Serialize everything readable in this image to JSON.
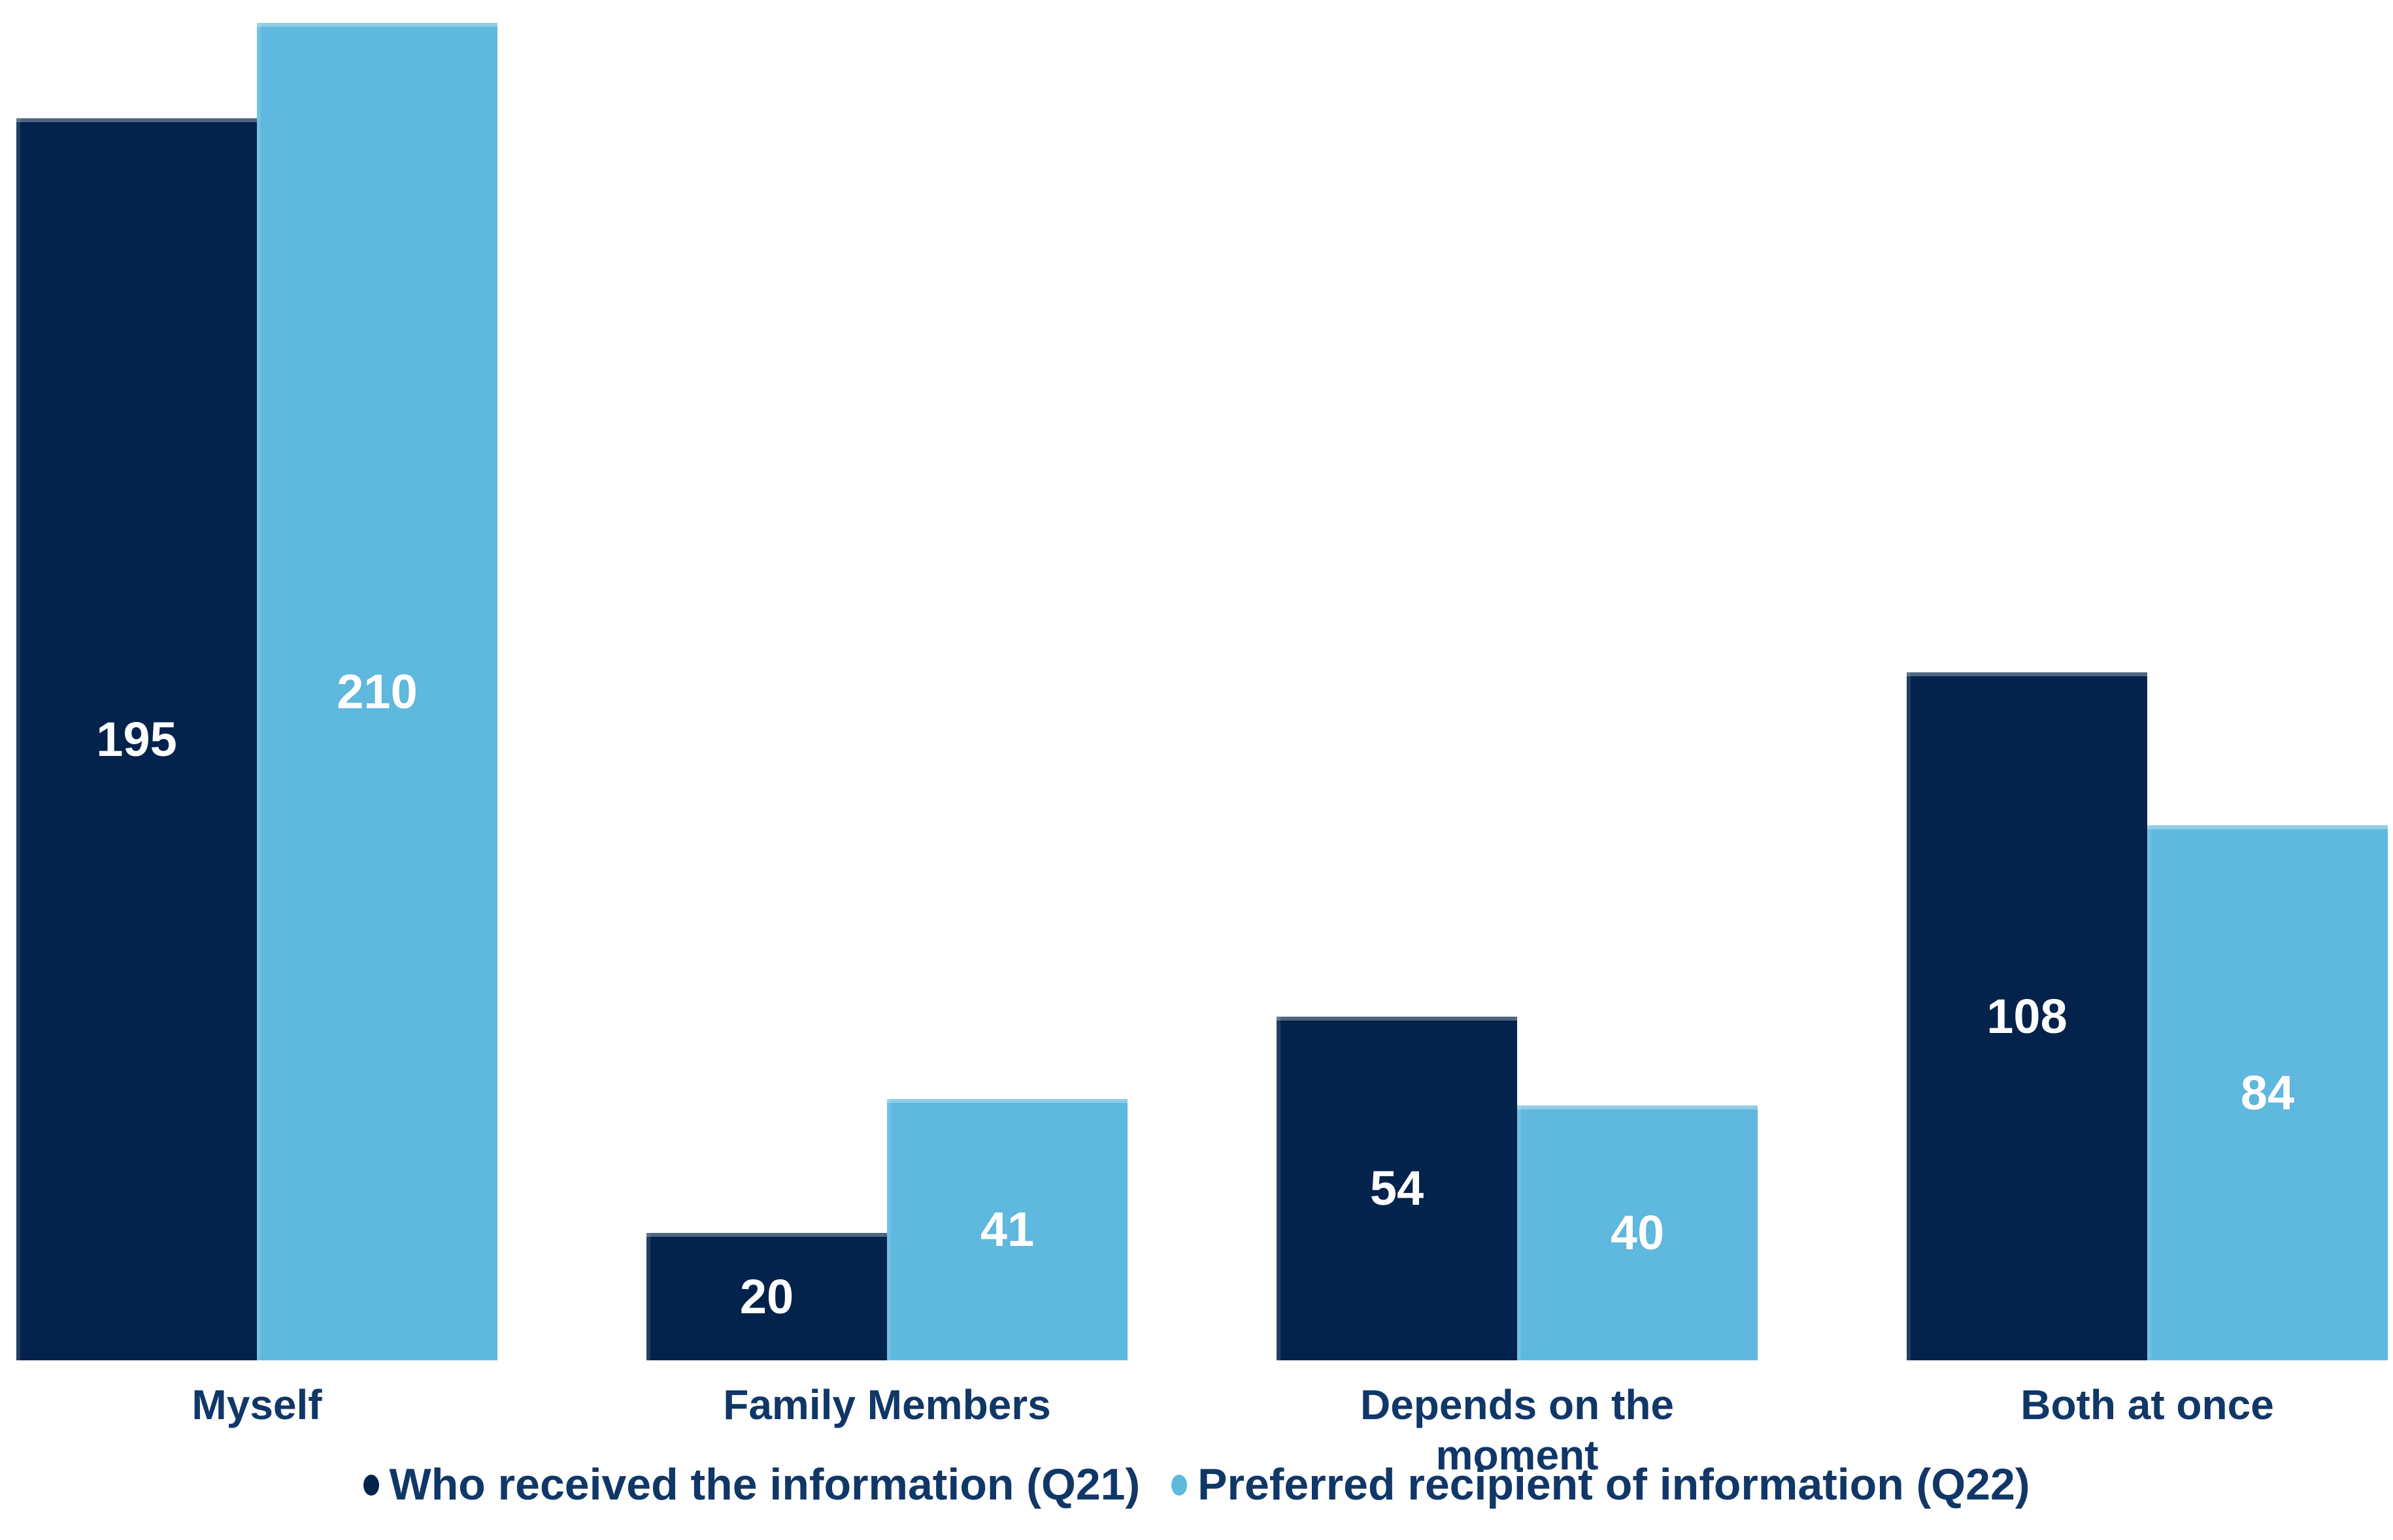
{
  "chart_data": {
    "type": "bar",
    "title": "",
    "categories": [
      "Myself",
      "Family Members",
      "Depends on the moment",
      "Both at once"
    ],
    "series": [
      {
        "name": "Who received the information (Q21)",
        "values": [
          195,
          20,
          54,
          108
        ],
        "color": "#03234C"
      },
      {
        "name": "Preferred recipient of information (Q22)",
        "values": [
          210,
          41,
          40,
          84
        ],
        "color": "#5FB8DE"
      }
    ],
    "ylim": [
      0,
      210
    ],
    "grid": false,
    "axes_visible": false,
    "data_labels": "inside-center",
    "data_label_color": "#FFFFFF",
    "legend_position": "bottom-center"
  },
  "colors": {
    "series1": "#03234C",
    "series2": "#5FB8DE",
    "label_text": "#103767",
    "background": "#FFFFFF"
  }
}
